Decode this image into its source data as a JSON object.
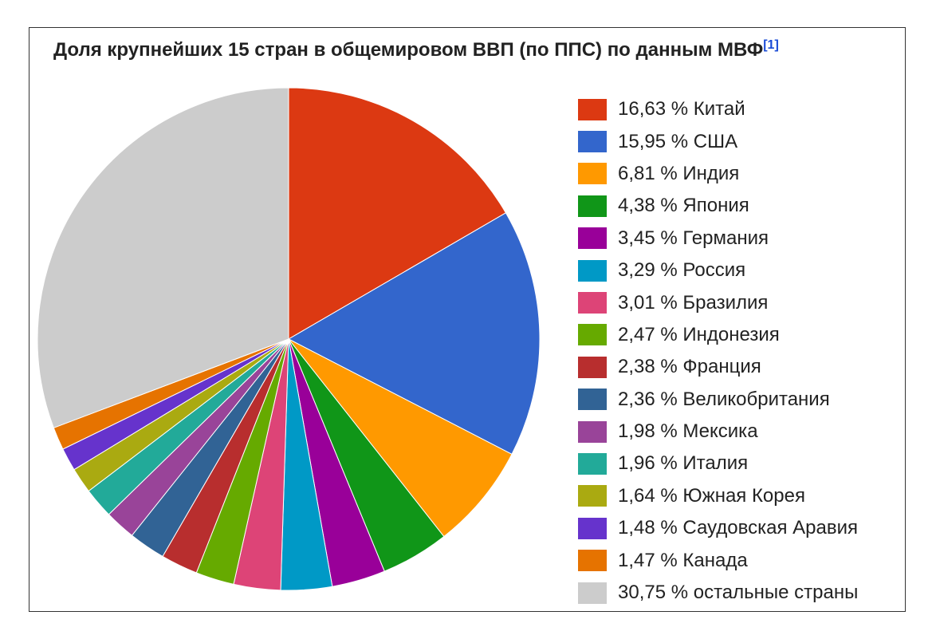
{
  "chart_data": {
    "type": "pie",
    "title": "Доля крупнейших 15 стран в общемировом ВВП (по ППС) по данным МВФ",
    "title_ref": "[1]",
    "start": "12 o'clock",
    "direction": "clockwise",
    "legend_position": "right",
    "slices": [
      {
        "label": "16,63 % Китай",
        "value": 16.63,
        "color": "#dc3912"
      },
      {
        "label": "15,95 % США",
        "value": 15.95,
        "color": "#3366cc"
      },
      {
        "label": "6,81 % Индия",
        "value": 6.81,
        "color": "#ff9900"
      },
      {
        "label": "4,38 % Япония",
        "value": 4.38,
        "color": "#109618"
      },
      {
        "label": "3,45 % Германия",
        "value": 3.45,
        "color": "#990099"
      },
      {
        "label": "3,29 % Россия",
        "value": 3.29,
        "color": "#0099c6"
      },
      {
        "label": "3,01 % Бразилия",
        "value": 3.01,
        "color": "#dd4477"
      },
      {
        "label": "2,47 % Индонезия",
        "value": 2.47,
        "color": "#66aa00"
      },
      {
        "label": "2,38 % Франция",
        "value": 2.38,
        "color": "#b82e2e"
      },
      {
        "label": "2,36 % Великобритания",
        "value": 2.36,
        "color": "#316395"
      },
      {
        "label": "1,98 % Мексика",
        "value": 1.98,
        "color": "#994499"
      },
      {
        "label": "1,96 % Италия",
        "value": 1.96,
        "color": "#22aa99"
      },
      {
        "label": "1,64 % Южная Корея",
        "value": 1.64,
        "color": "#aaaa11"
      },
      {
        "label": "1,48 % Саудовская Аравия",
        "value": 1.48,
        "color": "#6633cc"
      },
      {
        "label": "1,47 % Канада",
        "value": 1.47,
        "color": "#e67300"
      },
      {
        "label": "30,75 % остальные страны",
        "value": 30.75,
        "color": "#cccccc"
      }
    ]
  }
}
